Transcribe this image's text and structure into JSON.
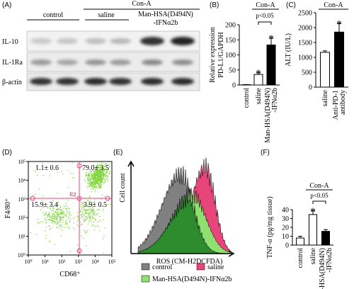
{
  "figure": {
    "panel_labels": [
      "(A)",
      "(B)",
      "(C)",
      "(D)",
      "(E)",
      "(F)"
    ],
    "blot": {
      "group_label": "Con-A",
      "lanes": [
        "control",
        "saline",
        [
          "Man-HSA(D494N)",
          "-IFNα2b"
        ]
      ],
      "rows": [
        "IL-10",
        "IL-1Ra",
        "β-actin"
      ]
    }
  },
  "chart_data": [
    {
      "type": "bar",
      "ylabel": [
        "Relative expression",
        "PD-L1/GAPDH"
      ],
      "categories": [
        "control",
        "saline",
        [
          "Man-HSA(D494N)",
          "-IFNα2b"
        ]
      ],
      "values": [
        1,
        35,
        133
      ],
      "errors": [
        0.5,
        5,
        22
      ],
      "colors": [
        "#ffffff",
        "#ffffff",
        "#000000"
      ],
      "markers": [
        null,
        "*",
        "*"
      ],
      "group_label": "Con-A",
      "bracket_label": "p<0.05",
      "ylim": [
        0,
        200
      ],
      "yticks": [
        0,
        50,
        100,
        150,
        200
      ]
    },
    {
      "type": "bar",
      "ylabel": [
        "ALT (IU/L)"
      ],
      "categories": [
        "saline",
        [
          "Anti-PD-1",
          "antibody"
        ]
      ],
      "values": [
        1170,
        1850
      ],
      "errors": [
        50,
        280
      ],
      "colors": [
        "#ffffff",
        "#000000"
      ],
      "markers": [
        null,
        "*"
      ],
      "group_label": "Con-A",
      "ylim": [
        0,
        2500
      ],
      "yticks": [
        0,
        500,
        1000,
        1500,
        2000,
        2500
      ]
    },
    {
      "type": "flow",
      "xlabel": "CD68⁺",
      "ylabel": "F4/80⁺",
      "gate_label": "R2",
      "quadrant_labels": [
        "1.1± 0.6",
        "79.0± 3.5",
        "15.9± 3.4",
        "3.9± 0.5"
      ],
      "xscale": "log",
      "yscale": "log",
      "color": "#7fd43a",
      "xlim": [
        1,
        100000
      ],
      "ylim": [
        1,
        100000
      ],
      "xticks": [
        {
          "value": 1,
          "label": "10⁰"
        },
        {
          "value": 10,
          "label": "10¹"
        },
        {
          "value": 100,
          "label": "10²"
        },
        {
          "value": 1000,
          "label": "10³"
        },
        {
          "value": 10000,
          "label": "10⁴"
        },
        {
          "value": 100000,
          "label": "10⁵"
        }
      ],
      "yticks": [
        {
          "value": 1,
          "label": "10⁰"
        },
        {
          "value": 10,
          "label": "10¹"
        },
        {
          "value": 100,
          "label": "10²"
        },
        {
          "value": 1000,
          "label": "10³"
        },
        {
          "value": 10000,
          "label": "10⁴"
        },
        {
          "value": 100000,
          "label": "10⁵"
        }
      ]
    },
    {
      "type": "histogram",
      "xlabel": "ROS (CM-H2DCFDA)",
      "ylabel": "Cell count",
      "series": [
        {
          "name": "control",
          "color": "#808080"
        },
        {
          "name": "saline",
          "color": "#e8457a"
        },
        {
          "name": "Man-HSA(D494N)-IFNα2b",
          "color": "#8fe070"
        }
      ]
    },
    {
      "type": "bar",
      "ylabel": [
        "TNF-α (pg/mg tissue)"
      ],
      "categories": [
        "control",
        "saline",
        [
          "Man-HSA(D494N)",
          "-IFNα2b"
        ]
      ],
      "values": [
        8,
        34.5,
        15.5
      ],
      "errors": [
        2,
        4,
        2
      ],
      "colors": [
        "#ffffff",
        "#ffffff",
        "#000000"
      ],
      "markers": [
        null,
        "*",
        null
      ],
      "group_label": "Con-A",
      "bracket_label": "p<0.05",
      "ylim": [
        0,
        40
      ],
      "yticks": [
        0,
        10,
        20,
        30,
        40
      ]
    }
  ]
}
